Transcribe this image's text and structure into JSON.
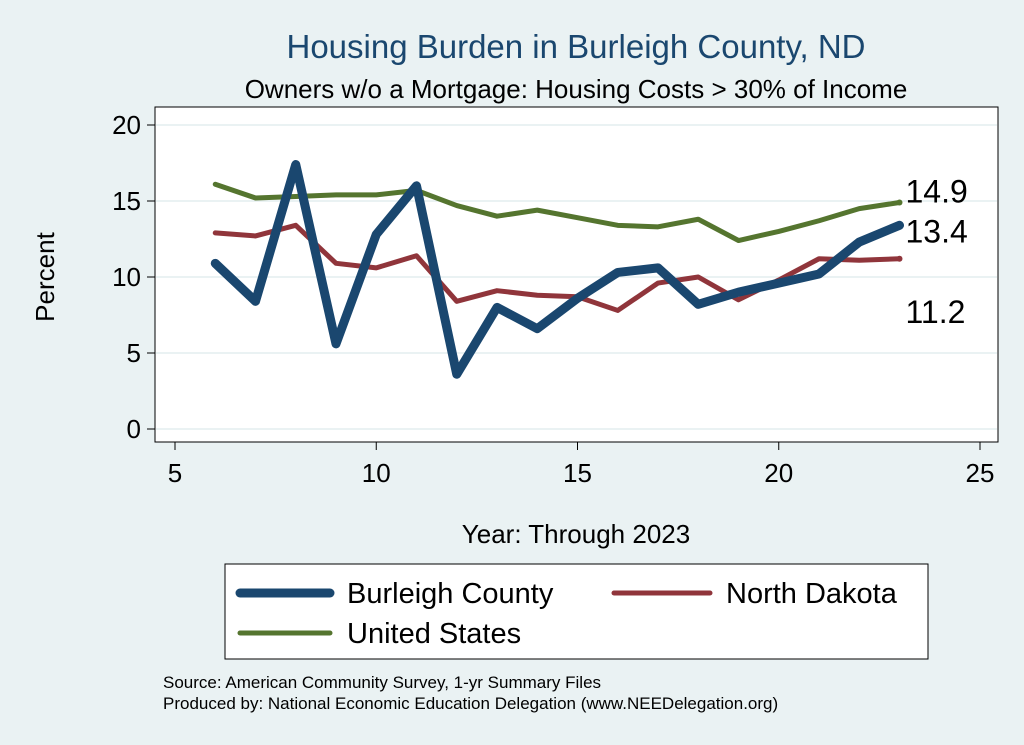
{
  "chart_data": {
    "type": "line",
    "title": "Housing Burden in Burleigh County, ND",
    "subtitle": "Owners w/o a Mortgage: Housing Costs > 30% of Income",
    "xlabel": "Year: Through 2023",
    "ylabel": "Percent",
    "xlim": [
      5,
      25
    ],
    "ylim": [
      0,
      20
    ],
    "xticks": [
      "5",
      "10",
      "15",
      "20",
      "25"
    ],
    "yticks": [
      "0",
      "5",
      "10",
      "15",
      "20"
    ],
    "grid": true,
    "legend_position": "bottom",
    "x": [
      6,
      7,
      8,
      9,
      10,
      11,
      12,
      13,
      14,
      15,
      16,
      17,
      18,
      19,
      20,
      21,
      22,
      23
    ],
    "series": [
      {
        "name": "Burleigh County",
        "color": "#1a476f",
        "values": [
          10.9,
          8.4,
          17.4,
          5.6,
          12.8,
          16.0,
          3.6,
          8.0,
          6.6,
          8.6,
          10.3,
          10.6,
          8.2,
          9.0,
          9.6,
          10.2,
          12.3,
          13.4
        ],
        "end_label": "13.4"
      },
      {
        "name": "North Dakota",
        "color": "#90353b",
        "values": [
          12.9,
          12.7,
          13.4,
          10.9,
          10.6,
          11.4,
          8.4,
          9.1,
          8.8,
          8.7,
          7.8,
          9.6,
          10.0,
          8.5,
          9.8,
          11.2,
          11.1,
          11.2
        ],
        "end_label": "11.2"
      },
      {
        "name": "United States",
        "color": "#55752f",
        "values": [
          16.1,
          15.2,
          15.3,
          15.4,
          15.4,
          15.7,
          14.7,
          14.0,
          14.4,
          13.9,
          13.4,
          13.3,
          13.8,
          12.4,
          13.0,
          13.7,
          14.5,
          14.9
        ],
        "end_label": "14.9"
      }
    ]
  },
  "source_line": "Source: American Community Survey, 1-yr Summary Files",
  "produced_line": "Produced by: National Economic Education Delegation (www.NEEDelegation.org)"
}
